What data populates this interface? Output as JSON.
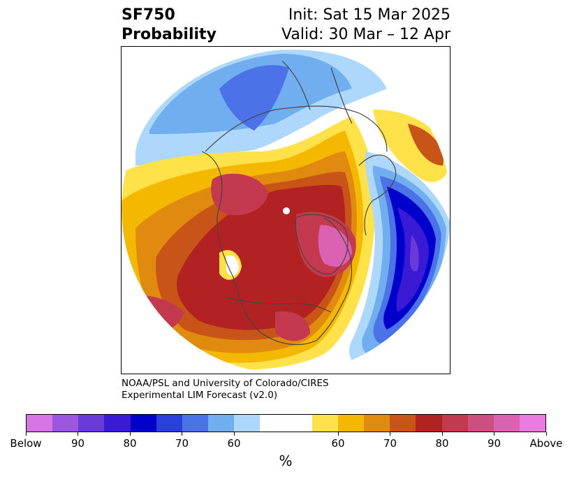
{
  "title": {
    "left_line1": "SF750",
    "left_line2": "Probability",
    "right_line1": "Init: Sat 15 Mar 2025",
    "right_line2": "Valid: 30 Mar – 12 Apr"
  },
  "credit": {
    "line1": "NOAA/PSL and University of Colorado/CIRES",
    "line2": "Experimental LIM Forecast (v2.0)"
  },
  "colorbar": {
    "unit": "%",
    "colors": [
      "#d774e6",
      "#9b57e2",
      "#6b3adb",
      "#3a1ad4",
      "#0000cc",
      "#2a3fdc",
      "#4c72e8",
      "#71aef0",
      "#aed8fb",
      "#ffffff",
      "#ffffff",
      "#ffe14a",
      "#f5b800",
      "#e08a10",
      "#c95418",
      "#b22222",
      "#c4394d",
      "#cf4e80",
      "#db62b2",
      "#e87ce0"
    ],
    "ticks": [
      "Below",
      "90",
      "80",
      "70",
      "60",
      "60",
      "70",
      "80",
      "90",
      "Above"
    ]
  },
  "map": {
    "fill_colors": {
      "below_60": "#aed8fb",
      "below_65": "#71aef0",
      "below_70": "#4c72e8",
      "below_75": "#2a3fdc",
      "below_80": "#0000cc",
      "below_85": "#3a1ad4",
      "below_90": "#6b3adb",
      "above_60": "#ffe14a",
      "above_65": "#f5b800",
      "above_70": "#e08a10",
      "above_75": "#c95418",
      "above_80": "#b22222",
      "above_85": "#c4394d",
      "above_90": "#cf4e80",
      "above_95": "#db62b2"
    },
    "border_color": "#444444"
  }
}
